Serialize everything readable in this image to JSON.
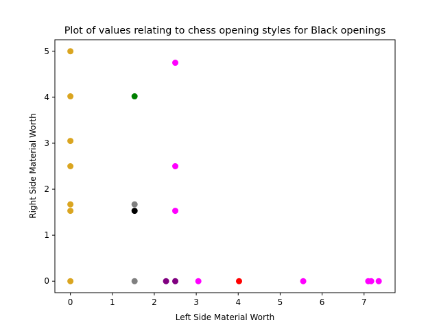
{
  "chart_data": {
    "type": "scatter",
    "title": "Plot of values relating to chess opening styles for Black openings",
    "xlabel": "Left Side Material Worth",
    "ylabel": "Right Side Material Worth",
    "xlim": [
      -0.37,
      7.74
    ],
    "ylim": [
      -0.25,
      5.25
    ],
    "xticks": [
      0,
      1,
      2,
      3,
      4,
      5,
      6,
      7
    ],
    "yticks": [
      0,
      1,
      2,
      3,
      4,
      5
    ],
    "grid": false,
    "legend": false,
    "points": [
      {
        "x": 0,
        "y": 5.0,
        "color": "#daa520"
      },
      {
        "x": 0,
        "y": 4.02,
        "color": "#daa520"
      },
      {
        "x": 0,
        "y": 3.05,
        "color": "#daa520"
      },
      {
        "x": 0,
        "y": 2.5,
        "color": "#daa520"
      },
      {
        "x": 0,
        "y": 1.67,
        "color": "#daa520"
      },
      {
        "x": 0,
        "y": 1.53,
        "color": "#daa520"
      },
      {
        "x": 0,
        "y": 0,
        "color": "#daa520"
      },
      {
        "x": 1.53,
        "y": 4.02,
        "color": "#008000"
      },
      {
        "x": 1.53,
        "y": 1.67,
        "color": "#808080"
      },
      {
        "x": 1.53,
        "y": 1.53,
        "color": "#000000"
      },
      {
        "x": 1.53,
        "y": 0,
        "color": "#808080"
      },
      {
        "x": 2.5,
        "y": 4.75,
        "color": "#ff00ff"
      },
      {
        "x": 2.5,
        "y": 2.5,
        "color": "#ff00ff"
      },
      {
        "x": 2.5,
        "y": 1.53,
        "color": "#ff00ff"
      },
      {
        "x": 2.28,
        "y": 0,
        "color": "#800080"
      },
      {
        "x": 2.5,
        "y": 0,
        "color": "#800080"
      },
      {
        "x": 3.05,
        "y": 0,
        "color": "#ff00ff"
      },
      {
        "x": 4.02,
        "y": 0,
        "color": "#ff0000"
      },
      {
        "x": 5.55,
        "y": 0,
        "color": "#ff00ff"
      },
      {
        "x": 7.1,
        "y": 0,
        "color": "#ff00ff"
      },
      {
        "x": 7.17,
        "y": 0,
        "color": "#ff00ff"
      },
      {
        "x": 7.35,
        "y": 0,
        "color": "#ff00ff"
      }
    ]
  }
}
